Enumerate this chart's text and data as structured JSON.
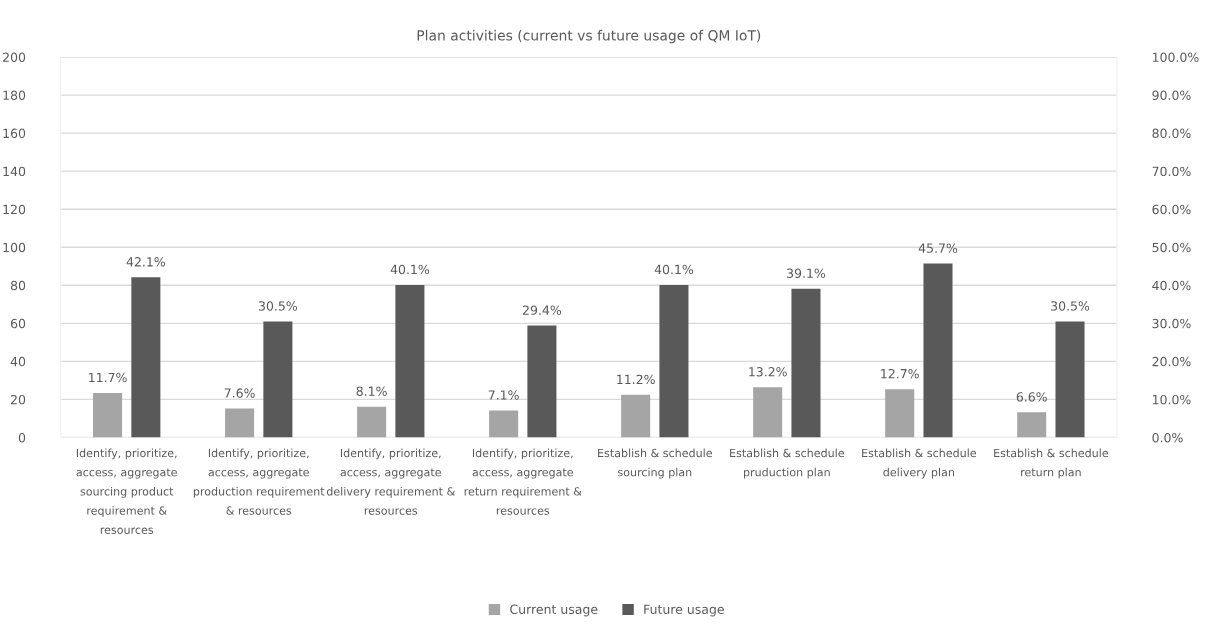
{
  "chart_data": {
    "type": "bar",
    "title": "Plan activities (current vs future usage of QM IoT)",
    "categories": [
      "Identify, prioritize,\naccess, aggregate\nsourcing product\nrequirement &\nresources",
      "Identify, prioritize,\naccess, aggregate\nproduction requirement\n& resources",
      "Identify, prioritize,\naccess, aggregate\ndelivery requirement &\nresources",
      "Identify, prioritize,\naccess, aggregate\nreturn requirement &\nresources",
      "Establish & schedule\nsourcing plan",
      "Establish & schedule\npruduction plan",
      "Establish & schedule\ndelivery plan",
      "Establish & schedule\nreturn plan"
    ],
    "series": [
      {
        "name": "Current usage",
        "color": "#a5a5a5",
        "axis": "y2",
        "values": [
          11.7,
          7.6,
          8.1,
          7.1,
          11.2,
          13.2,
          12.7,
          6.6
        ],
        "value_labels": [
          "11.7%",
          "7.6%",
          "8.1%",
          "7.1%",
          "11.2%",
          "13.2%",
          "12.7%",
          "6.6%"
        ]
      },
      {
        "name": "Future usage",
        "color": "#595959",
        "axis": "y2",
        "values": [
          42.1,
          30.5,
          40.1,
          29.4,
          40.1,
          39.1,
          45.7,
          30.5
        ],
        "value_labels": [
          "42.1%",
          "30.5%",
          "40.1%",
          "29.4%",
          "40.1%",
          "39.1%",
          "45.7%",
          "30.5%"
        ]
      }
    ],
    "ylim": [
      0,
      200
    ],
    "yticks": [
      0,
      20,
      40,
      60,
      80,
      100,
      120,
      140,
      160,
      180,
      200
    ],
    "y2lim": [
      0,
      100
    ],
    "y2ticks": [
      {
        "value": 0,
        "label": "0.0%"
      },
      {
        "value": 10,
        "label": "10.0%"
      },
      {
        "value": 20,
        "label": "20.0%"
      },
      {
        "value": 30,
        "label": "30.0%"
      },
      {
        "value": 40,
        "label": "40.0%"
      },
      {
        "value": 50,
        "label": "50.0%"
      },
      {
        "value": 60,
        "label": "60.0%"
      },
      {
        "value": 70,
        "label": "70.0%"
      },
      {
        "value": 80,
        "label": "80.0%"
      },
      {
        "value": 90,
        "label": "90.0%"
      },
      {
        "value": 100,
        "label": "100.0%"
      }
    ],
    "grid": "y",
    "legend": "bottom"
  }
}
